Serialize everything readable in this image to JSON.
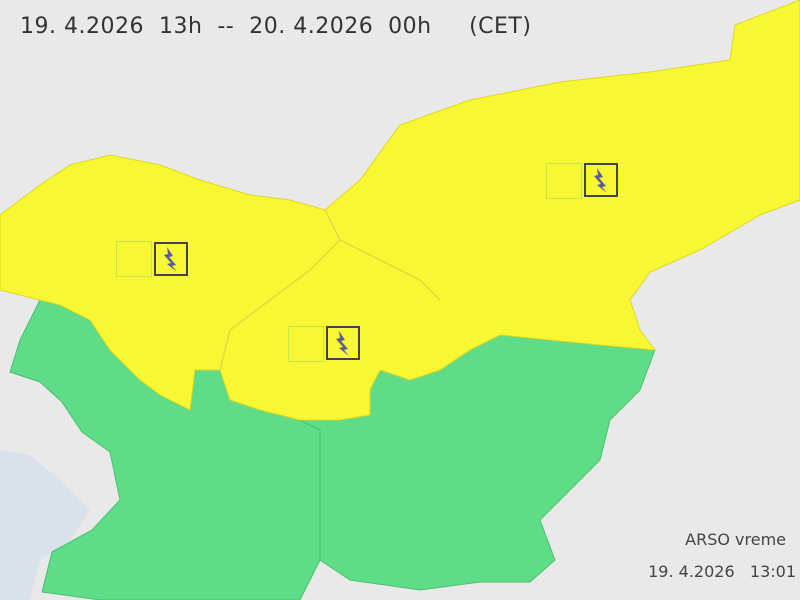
{
  "header": {
    "period": "19. 4.2026  13h  --  20. 4.2026  00h     (CET)"
  },
  "footer": {
    "source": "ARSO vreme",
    "issued": "19. 4.2026   13:01"
  },
  "legend_colors": {
    "yellow_warning": "#f7f733",
    "green_no_warning": "#5fdc88",
    "background": "#e9e9e9",
    "sea": "#d9e1ea"
  },
  "regions": [
    {
      "name": "northwest",
      "level": "yellow",
      "icon": "thunderstorm-icon"
    },
    {
      "name": "central",
      "level": "yellow",
      "icon": "thunderstorm-icon"
    },
    {
      "name": "northeast",
      "level": "yellow",
      "icon": "thunderstorm-icon"
    },
    {
      "name": "southwest",
      "level": "green"
    },
    {
      "name": "southeast",
      "level": "green"
    }
  ]
}
